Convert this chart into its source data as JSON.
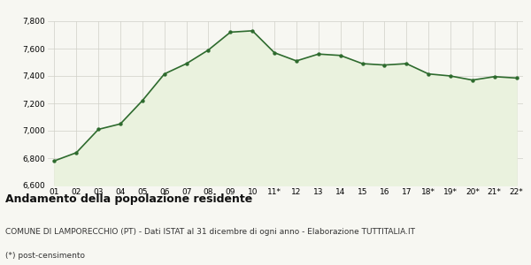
{
  "x_labels": [
    "01",
    "02",
    "03",
    "04",
    "05",
    "06",
    "07",
    "08",
    "09",
    "10",
    "11*",
    "12",
    "13",
    "14",
    "15",
    "16",
    "17",
    "18*",
    "19*",
    "20*",
    "21*",
    "22*"
  ],
  "y_values": [
    6780,
    6840,
    7010,
    7050,
    7220,
    7415,
    7490,
    7590,
    7720,
    7730,
    7570,
    7510,
    7560,
    7550,
    7490,
    7480,
    7490,
    7415,
    7400,
    7370,
    7395,
    7385
  ],
  "ylim": [
    6600,
    7800
  ],
  "yticks": [
    6600,
    6800,
    7000,
    7200,
    7400,
    7600,
    7800
  ],
  "line_color": "#2e6b2e",
  "fill_color": "#eaf2de",
  "marker_color": "#2e6b2e",
  "background_color": "#f7f7f2",
  "plot_bg_color": "#f7f7f2",
  "grid_color": "#d0d0c8",
  "title": "Andamento della popolazione residente",
  "subtitle": "COMUNE DI LAMPORECCHIO (PT) - Dati ISTAT al 31 dicembre di ogni anno - Elaborazione TUTTITALIA.IT",
  "footnote": "(*) post-censimento",
  "title_fontsize": 9,
  "subtitle_fontsize": 6.5,
  "footnote_fontsize": 6.5,
  "tick_fontsize": 6.5,
  "ytick_fontsize": 6.5
}
